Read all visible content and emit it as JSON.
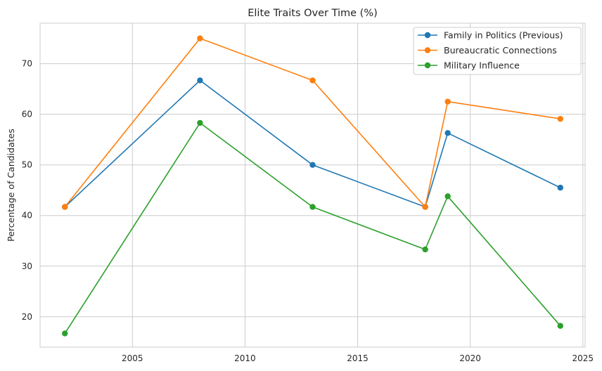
{
  "chart_data": {
    "type": "line",
    "title": "Elite Traits Over Time (%)",
    "xlabel": "",
    "ylabel": "Percentage of Candidates",
    "xlim": [
      2000.9,
      2025.1
    ],
    "ylim": [
      14.0,
      78.0
    ],
    "xticks": [
      2005,
      2010,
      2015,
      2020,
      2025
    ],
    "yticks": [
      20,
      30,
      40,
      50,
      60,
      70
    ],
    "grid": true,
    "legend_position": "upper right",
    "x": [
      2002,
      2008,
      2013,
      2018,
      2019,
      2024
    ],
    "series": [
      {
        "name": "Family in Politics (Previous)",
        "color": "#1f77b4",
        "values": [
          41.7,
          66.7,
          50.0,
          41.7,
          56.3,
          45.5
        ]
      },
      {
        "name": "Bureaucratic Connections",
        "color": "#ff7f0e",
        "values": [
          41.7,
          75.0,
          66.7,
          41.7,
          62.5,
          59.1
        ]
      },
      {
        "name": "Military Influence",
        "color": "#2ca02c",
        "values": [
          16.7,
          58.3,
          41.7,
          33.3,
          43.8,
          18.2
        ]
      }
    ]
  }
}
